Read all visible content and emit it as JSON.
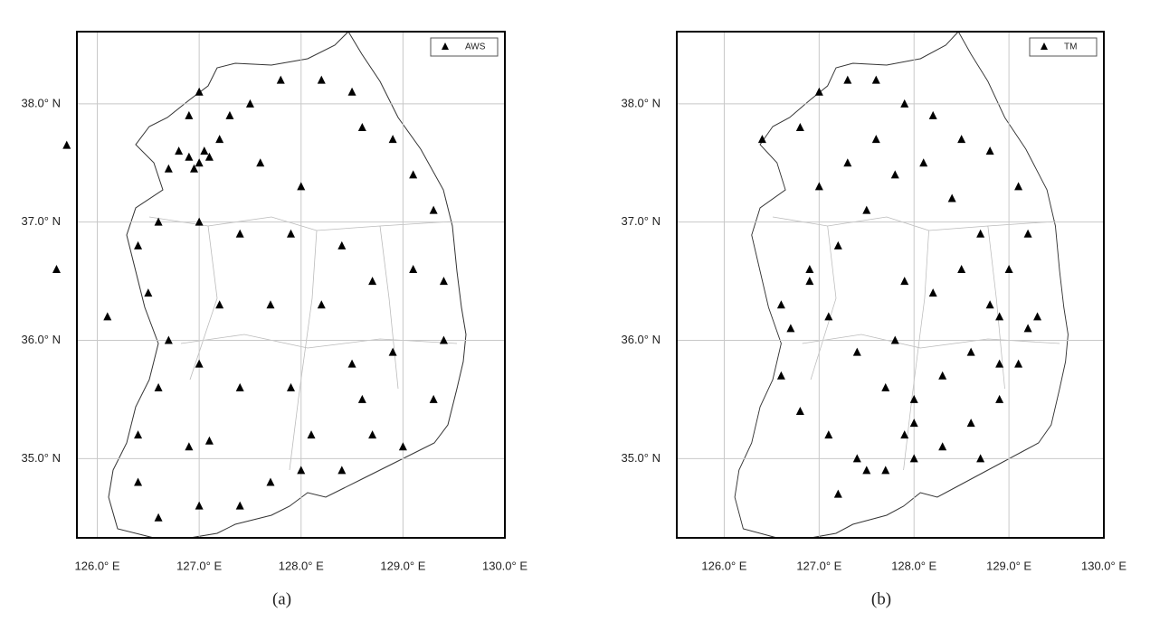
{
  "chart_data": [
    {
      "type": "scatter",
      "caption": "(a)",
      "xlim": [
        125.8,
        130.0
      ],
      "ylim": [
        34.33,
        38.61
      ],
      "xticks": [
        {
          "value": 126,
          "label": "126.0° E"
        },
        {
          "value": 127,
          "label": "127.0° E"
        },
        {
          "value": 128,
          "label": "128.0° E"
        },
        {
          "value": 129,
          "label": "129.0° E"
        },
        {
          "value": 130,
          "label": "130.0° E"
        }
      ],
      "yticks": [
        {
          "value": 35,
          "label": "35.0° N"
        },
        {
          "value": 36,
          "label": "36.0° N"
        },
        {
          "value": 37,
          "label": "37.0° N"
        },
        {
          "value": 38,
          "label": "38.0° N"
        }
      ],
      "grid": true,
      "legend": "upper right",
      "series": [
        {
          "name": "AWS",
          "color": "#000000",
          "x": [
            126.9,
            127.0,
            127.05,
            126.95,
            127.1,
            126.8,
            127.2,
            126.7,
            127.3,
            127.0,
            126.9,
            127.5,
            127.8,
            128.2,
            128.5,
            128.6,
            128.9,
            129.1,
            129.3,
            129.4,
            129.4,
            129.3,
            129.0,
            128.7,
            128.4,
            128.0,
            127.7,
            127.4,
            127.0,
            126.6,
            126.4,
            126.4,
            126.6,
            126.7,
            126.5,
            126.4,
            126.6,
            127.0,
            127.4,
            127.9,
            128.4,
            128.7,
            128.2,
            127.7,
            127.2,
            127.0,
            127.4,
            127.9,
            128.5,
            128.9,
            128.6,
            127.1,
            126.9,
            128.1,
            129.1,
            128.0,
            127.6,
            126.1,
            125.6,
            125.7
          ],
          "y": [
            37.55,
            37.5,
            37.6,
            37.45,
            37.55,
            37.6,
            37.7,
            37.45,
            37.9,
            38.1,
            37.9,
            38.0,
            38.2,
            38.2,
            38.1,
            37.8,
            37.7,
            37.4,
            37.1,
            36.5,
            36.0,
            35.5,
            35.1,
            35.2,
            34.9,
            34.9,
            34.8,
            34.6,
            34.6,
            34.5,
            34.8,
            35.2,
            35.6,
            36.0,
            36.4,
            36.8,
            37.0,
            37.0,
            36.9,
            36.9,
            36.8,
            36.5,
            36.3,
            36.3,
            36.3,
            35.8,
            35.6,
            35.6,
            35.8,
            35.9,
            35.5,
            35.15,
            35.1,
            35.2,
            36.6,
            37.3,
            37.5,
            36.2,
            36.6,
            37.65
          ]
        }
      ]
    },
    {
      "type": "scatter",
      "caption": "(b)",
      "xlim": [
        125.5,
        130.0
      ],
      "ylim": [
        34.33,
        38.61
      ],
      "xticks": [
        {
          "value": 126,
          "label": "126.0° E"
        },
        {
          "value": 127,
          "label": "127.0° E"
        },
        {
          "value": 128,
          "label": "128.0° E"
        },
        {
          "value": 129,
          "label": "129.0° E"
        },
        {
          "value": 130,
          "label": "130.0° E"
        }
      ],
      "yticks": [
        {
          "value": 35,
          "label": "35.0° N"
        },
        {
          "value": 36,
          "label": "36.0° N"
        },
        {
          "value": 37,
          "label": "37.0° N"
        },
        {
          "value": 38,
          "label": "38.0° N"
        }
      ],
      "grid": true,
      "legend": "upper right",
      "series": [
        {
          "name": "TM",
          "color": "#000000",
          "x": [
            126.4,
            126.8,
            127.0,
            127.3,
            127.6,
            127.9,
            128.2,
            128.5,
            128.8,
            129.1,
            129.2,
            129.3,
            129.1,
            128.9,
            128.6,
            128.3,
            128.0,
            127.7,
            127.4,
            127.1,
            126.8,
            126.6,
            126.7,
            126.9,
            127.2,
            127.5,
            127.8,
            128.1,
            128.4,
            128.7,
            129.0,
            129.2,
            128.9,
            128.6,
            128.3,
            128.0,
            127.7,
            127.4,
            127.1,
            126.9,
            127.0,
            127.3,
            127.6,
            127.9,
            128.2,
            128.5,
            128.8,
            127.8,
            127.9,
            128.0,
            128.7,
            128.9,
            127.2,
            127.5,
            126.6
          ],
          "y": [
            37.7,
            37.8,
            38.1,
            38.2,
            38.2,
            38.0,
            37.9,
            37.7,
            37.6,
            37.3,
            36.9,
            36.2,
            35.8,
            35.5,
            35.3,
            35.1,
            35.0,
            34.9,
            35.0,
            35.2,
            35.4,
            35.7,
            36.1,
            36.5,
            36.8,
            37.1,
            37.4,
            37.5,
            37.2,
            36.9,
            36.6,
            36.1,
            36.2,
            35.9,
            35.7,
            35.5,
            35.6,
            35.9,
            36.2,
            36.6,
            37.3,
            37.5,
            37.7,
            36.5,
            36.4,
            36.6,
            36.3,
            36.0,
            35.2,
            35.3,
            35.0,
            35.8,
            34.7,
            34.9,
            36.3
          ]
        }
      ]
    }
  ]
}
